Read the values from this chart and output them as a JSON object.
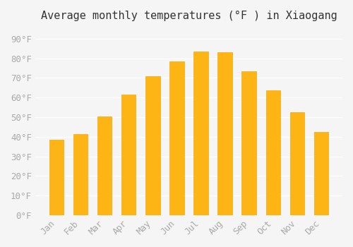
{
  "title": "Average monthly temperatures (°F ) in Xiaogang",
  "months": [
    "Jan",
    "Feb",
    "Mar",
    "Apr",
    "May",
    "Jun",
    "Jul",
    "Aug",
    "Sep",
    "Oct",
    "Nov",
    "Dec"
  ],
  "values": [
    38.5,
    41.5,
    50.5,
    61.5,
    71.0,
    78.5,
    83.5,
    83.0,
    73.5,
    63.5,
    52.5,
    42.5
  ],
  "bar_color": "#FDB515",
  "bar_edge_color": "#FFA500",
  "background_color": "#F5F5F5",
  "grid_color": "#FFFFFF",
  "text_color": "#AAAAAA",
  "ylim": [
    0,
    95
  ],
  "yticks": [
    0,
    10,
    20,
    30,
    40,
    50,
    60,
    70,
    80,
    90
  ],
  "title_fontsize": 11,
  "tick_fontsize": 9
}
